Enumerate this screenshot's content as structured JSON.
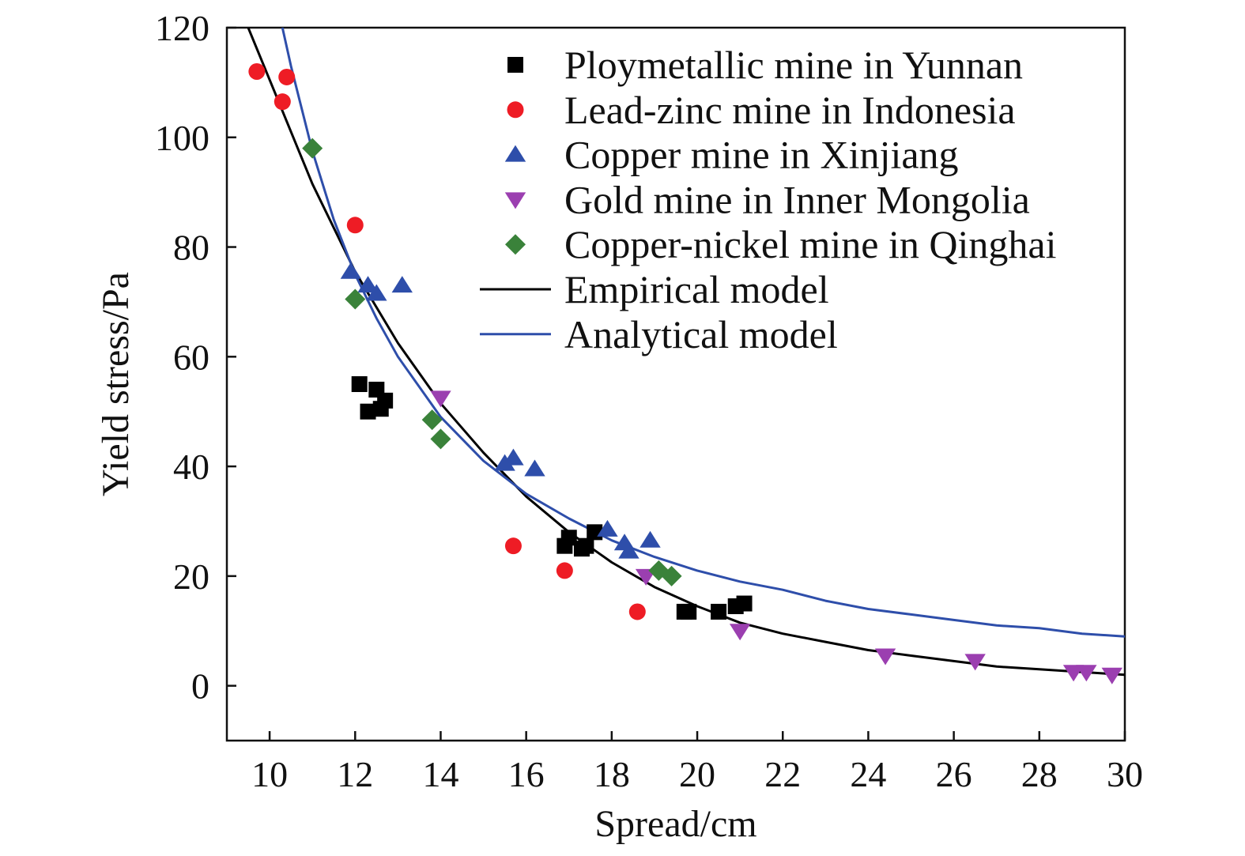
{
  "chart_data": {
    "type": "scatter",
    "title": "",
    "xlabel": "Spread/cm",
    "ylabel": "Yield stress/Pa",
    "xlim": [
      9,
      30
    ],
    "ylim": [
      -10,
      120
    ],
    "xticks": [
      10,
      12,
      14,
      16,
      18,
      20,
      22,
      24,
      26,
      28,
      30
    ],
    "yticks": [
      0,
      20,
      40,
      60,
      80,
      100,
      120
    ],
    "grid": false,
    "legend_position": "top-right",
    "series": [
      {
        "name": "Ploymetallic mine in Yunnan",
        "marker": "square",
        "color": "#000000",
        "x": [
          12.1,
          12.3,
          12.5,
          12.6,
          12.7,
          16.9,
          17.0,
          17.3,
          17.4,
          17.6,
          19.7,
          19.8,
          20.5,
          20.9,
          21.1
        ],
        "y": [
          55,
          50,
          54,
          50.5,
          52,
          25.5,
          27,
          25,
          25.5,
          28,
          13.5,
          13.5,
          13.5,
          14.5,
          15
        ]
      },
      {
        "name": "Lead-zinc mine in Indonesia",
        "marker": "circle",
        "color": "#ee1c25",
        "x": [
          9.7,
          10.3,
          10.4,
          12.0,
          15.7,
          16.9,
          18.6
        ],
        "y": [
          112,
          106.5,
          111,
          84,
          25.5,
          21,
          13.5
        ]
      },
      {
        "name": "Copper mine in Xinjiang",
        "marker": "triangle-up",
        "color": "#2e4eaa",
        "x": [
          11.9,
          12.3,
          12.5,
          13.1,
          15.5,
          15.7,
          16.2,
          17.9,
          18.3,
          18.4,
          18.9
        ],
        "y": [
          75.5,
          73,
          71.5,
          73,
          40.5,
          41.5,
          39.5,
          28.5,
          26,
          24.5,
          26.5
        ]
      },
      {
        "name": "Gold mine in Inner Mongolia",
        "marker": "triangle-down",
        "color": "#9b3fb0",
        "x": [
          14.0,
          18.8,
          21.0,
          24.4,
          26.5,
          28.8,
          29.1,
          29.7
        ],
        "y": [
          52.5,
          20,
          10,
          5.5,
          4.5,
          2.5,
          2.5,
          2
        ]
      },
      {
        "name": "Copper-nickel mine in Qinghai",
        "marker": "diamond",
        "color": "#3a823a",
        "x": [
          11.0,
          12.0,
          13.8,
          14.0,
          19.1,
          19.4
        ],
        "y": [
          98,
          70.5,
          48.5,
          45,
          21,
          20
        ]
      },
      {
        "name": "Empirical model",
        "marker": "line",
        "color": "#000000",
        "x": [
          9.5,
          10,
          11,
          12,
          13,
          14,
          15,
          16,
          17,
          18,
          19,
          20,
          21,
          22,
          23,
          24,
          25,
          26,
          27,
          28,
          29,
          30
        ],
        "y": [
          120,
          110.5,
          91.5,
          75.5,
          62.5,
          51.5,
          42.5,
          34.5,
          28,
          22.5,
          18,
          14.5,
          11.5,
          9.5,
          8,
          6.5,
          5.5,
          4.5,
          3.5,
          3,
          2.5,
          2
        ]
      },
      {
        "name": "Analytical model",
        "marker": "line",
        "color": "#2e4eaa",
        "x": [
          10.3,
          10.5,
          11,
          11.5,
          12,
          12.5,
          13,
          14,
          15,
          16,
          17,
          18,
          19,
          20,
          21,
          22,
          23,
          24,
          25,
          26,
          27,
          28,
          29,
          30
        ],
        "y": [
          120,
          113,
          97.5,
          85,
          75,
          67,
          60,
          49,
          41,
          35,
          30.5,
          26.5,
          23.5,
          21,
          19,
          17.5,
          15.5,
          14,
          13,
          12,
          11,
          10.5,
          9.5,
          9
        ]
      }
    ]
  }
}
